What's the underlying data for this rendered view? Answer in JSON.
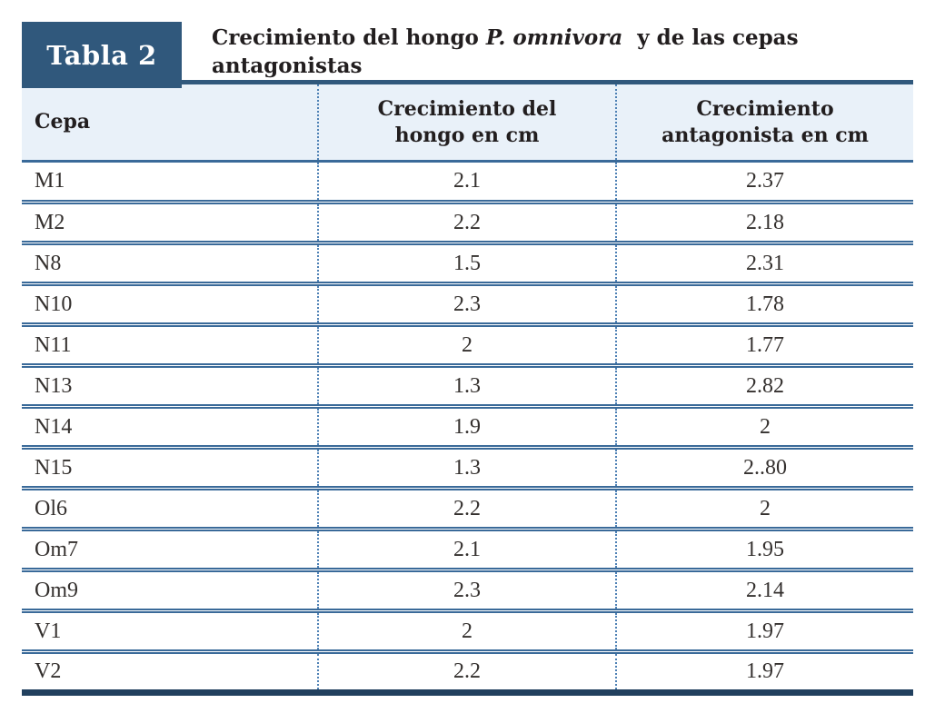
{
  "header": {
    "badge": "Tabla 2",
    "title_prefix": "Crecimiento del hongo ",
    "title_species": "P. omnivora",
    "title_suffix": " y de las cepas",
    "title_line2": "antagonistas"
  },
  "table": {
    "columns": [
      "Cepa",
      "Crecimiento del\nhongo en cm",
      "Crecimiento\nantagonista en cm"
    ],
    "rows": [
      {
        "cepa": "M1",
        "hongo": "2.1",
        "antagonista": "2.37"
      },
      {
        "cepa": "M2",
        "hongo": "2.2",
        "antagonista": "2.18"
      },
      {
        "cepa": "N8",
        "hongo": "1.5",
        "antagonista": "2.31"
      },
      {
        "cepa": "N10",
        "hongo": "2.3",
        "antagonista": "1.78"
      },
      {
        "cepa": "N11",
        "hongo": "2",
        "antagonista": "1.77"
      },
      {
        "cepa": "N13",
        "hongo": "1.3",
        "antagonista": "2.82"
      },
      {
        "cepa": "N14",
        "hongo": "1.9",
        "antagonista": "2"
      },
      {
        "cepa": "N15",
        "hongo": "1.3",
        "antagonista": "2..80"
      },
      {
        "cepa": "Ol6",
        "hongo": "2.2",
        "antagonista": "2"
      },
      {
        "cepa": "Om7",
        "hongo": "2.1",
        "antagonista": "1.95"
      },
      {
        "cepa": "Om9",
        "hongo": "2.3",
        "antagonista": "2.14"
      },
      {
        "cepa": "V1",
        "hongo": "2",
        "antagonista": "1.97"
      },
      {
        "cepa": "V2",
        "hongo": "2.2",
        "antagonista": "1.97"
      }
    ]
  },
  "colors": {
    "badge_navy": "#30587c",
    "table_top_border": "#30587c",
    "table_bottom_border": "#21405e",
    "row_separator": "#3a6a99",
    "column_dotted": "#4e81b5",
    "header_background": "#e9f1f9",
    "text_dark": "#221e1f"
  },
  "chart_data": {
    "type": "table",
    "title": "Tabla 2 — Crecimiento del hongo P. omnivora y de las cepas antagonistas",
    "columns": [
      "Cepa",
      "Crecimiento del hongo en cm",
      "Crecimiento antagonista en cm"
    ],
    "rows": [
      [
        "M1",
        "2.1",
        "2.37"
      ],
      [
        "M2",
        "2.2",
        "2.18"
      ],
      [
        "N8",
        "1.5",
        "2.31"
      ],
      [
        "N10",
        "2.3",
        "1.78"
      ],
      [
        "N11",
        "2",
        "1.77"
      ],
      [
        "N13",
        "1.3",
        "2.82"
      ],
      [
        "N14",
        "1.9",
        "2"
      ],
      [
        "N15",
        "1.3",
        "2..80"
      ],
      [
        "Ol6",
        "2.2",
        "2"
      ],
      [
        "Om7",
        "2.1",
        "1.95"
      ],
      [
        "Om9",
        "2.3",
        "2.14"
      ],
      [
        "V1",
        "2",
        "1.97"
      ],
      [
        "V2",
        "2.2",
        "1.97"
      ]
    ]
  }
}
